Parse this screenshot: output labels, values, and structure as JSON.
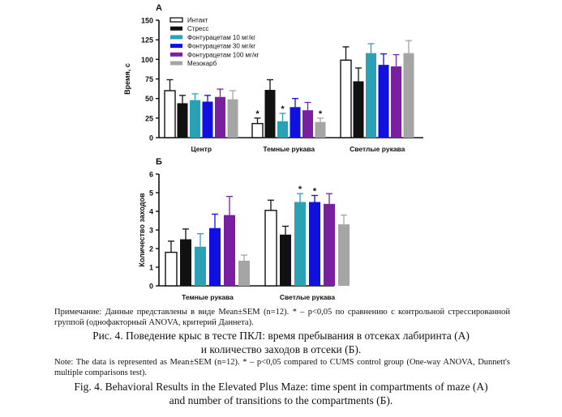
{
  "colors": {
    "intact": "#ffffff",
    "stress": "#111111",
    "fonturacetam_10": "#2aa1b5",
    "fonturacetam_30": "#1010e0",
    "fonturacetam_100": "#7a1fa2",
    "mesocarb": "#a5a5a5"
  },
  "chart_data": [
    {
      "type": "bar",
      "panel_label": "А",
      "ylabel": "Время, с",
      "ylim": [
        0,
        150
      ],
      "yticks": [
        "0",
        "25",
        "50",
        "75",
        "100",
        "125",
        "150"
      ],
      "categories": [
        "Центр",
        "Темные рукава",
        "Светлые рукава"
      ],
      "legend": [
        "Интакт",
        "Стресс",
        "Фонтурацетам 10 мг/кг",
        "Фонтурацетам 30 мг/кг",
        "Фонтурацетам 100 мг/кг",
        "Мезокарб"
      ],
      "series": [
        {
          "name": "Интакт",
          "values": [
            60,
            18,
            99
          ],
          "errors": [
            14,
            7,
            17
          ],
          "stars": [
            false,
            true,
            false
          ]
        },
        {
          "name": "Стресс",
          "values": [
            44,
            61,
            72
          ],
          "errors": [
            10,
            13,
            17
          ],
          "stars": [
            false,
            false,
            false
          ]
        },
        {
          "name": "Фонтурацетам 10 мг/кг",
          "values": [
            48,
            21,
            108
          ],
          "errors": [
            8,
            10,
            12
          ],
          "stars": [
            false,
            true,
            false
          ]
        },
        {
          "name": "Фонтурацетам 30 мг/кг",
          "values": [
            46,
            39,
            93
          ],
          "errors": [
            8,
            11,
            14
          ],
          "stars": [
            false,
            false,
            false
          ]
        },
        {
          "name": "Фонтурацетам 100 мг/кг",
          "values": [
            52,
            35,
            91
          ],
          "errors": [
            10,
            10,
            15
          ],
          "stars": [
            false,
            false,
            false
          ]
        },
        {
          "name": "Мезокарб",
          "values": [
            49,
            20,
            108
          ],
          "errors": [
            11,
            5,
            16
          ],
          "stars": [
            false,
            true,
            false
          ]
        }
      ]
    },
    {
      "type": "bar",
      "panel_label": "Б",
      "ylabel": "Количество заходов",
      "ylim": [
        0,
        6
      ],
      "yticks": [
        "0",
        "1",
        "2",
        "3",
        "4",
        "5",
        "6"
      ],
      "categories": [
        "Темные рукава",
        "Светлые рукава"
      ],
      "series": [
        {
          "name": "Интакт",
          "values": [
            1.8,
            4.05
          ],
          "errors": [
            0.6,
            0.55
          ],
          "stars": [
            false,
            false
          ]
        },
        {
          "name": "Стресс",
          "values": [
            2.5,
            2.75
          ],
          "errors": [
            0.55,
            0.45
          ],
          "stars": [
            false,
            false
          ]
        },
        {
          "name": "Фонтурацетам 10 мг/кг",
          "values": [
            2.1,
            4.5
          ],
          "errors": [
            0.7,
            0.45
          ],
          "stars": [
            false,
            true
          ]
        },
        {
          "name": "Фонтурацетам 30 мг/кг",
          "values": [
            3.1,
            4.5
          ],
          "errors": [
            0.75,
            0.35
          ],
          "stars": [
            false,
            true
          ]
        },
        {
          "name": "Фонтурацетам 100 мг/кг",
          "values": [
            3.8,
            4.4
          ],
          "errors": [
            1.0,
            0.55
          ],
          "stars": [
            false,
            false
          ]
        },
        {
          "name": "Мезокарб",
          "values": [
            1.35,
            3.3
          ],
          "errors": [
            0.3,
            0.5
          ],
          "stars": [
            false,
            false
          ]
        }
      ]
    }
  ],
  "caption": {
    "note_ru": "Примечание: Данные представлены в виде Mean±SEM (n=12). * – p<0,05 по сравнению с контрольной стрессированной группой (однофакторный ANOVA, критерий Даннета).",
    "title_ru_line1": "Рис. 4. Поведение крыс в тесте ПКЛ: время пребывания в отсеках лабиринта (А)",
    "title_ru_line2": "и количество заходов в отсеки (Б).",
    "note_en": "Note: The data is represented as Mean±SEM (n=12). * – p<0,05 compared to CUMS control group (One-way ANOVA, Dunnett's multiple comparisons test).",
    "title_en_line1": "Fig. 4. Behavioral Results in the Elevated Plus Maze: time spent in compartments of maze (A)",
    "title_en_line2": "and number of transitions to the compartments (Б)."
  }
}
